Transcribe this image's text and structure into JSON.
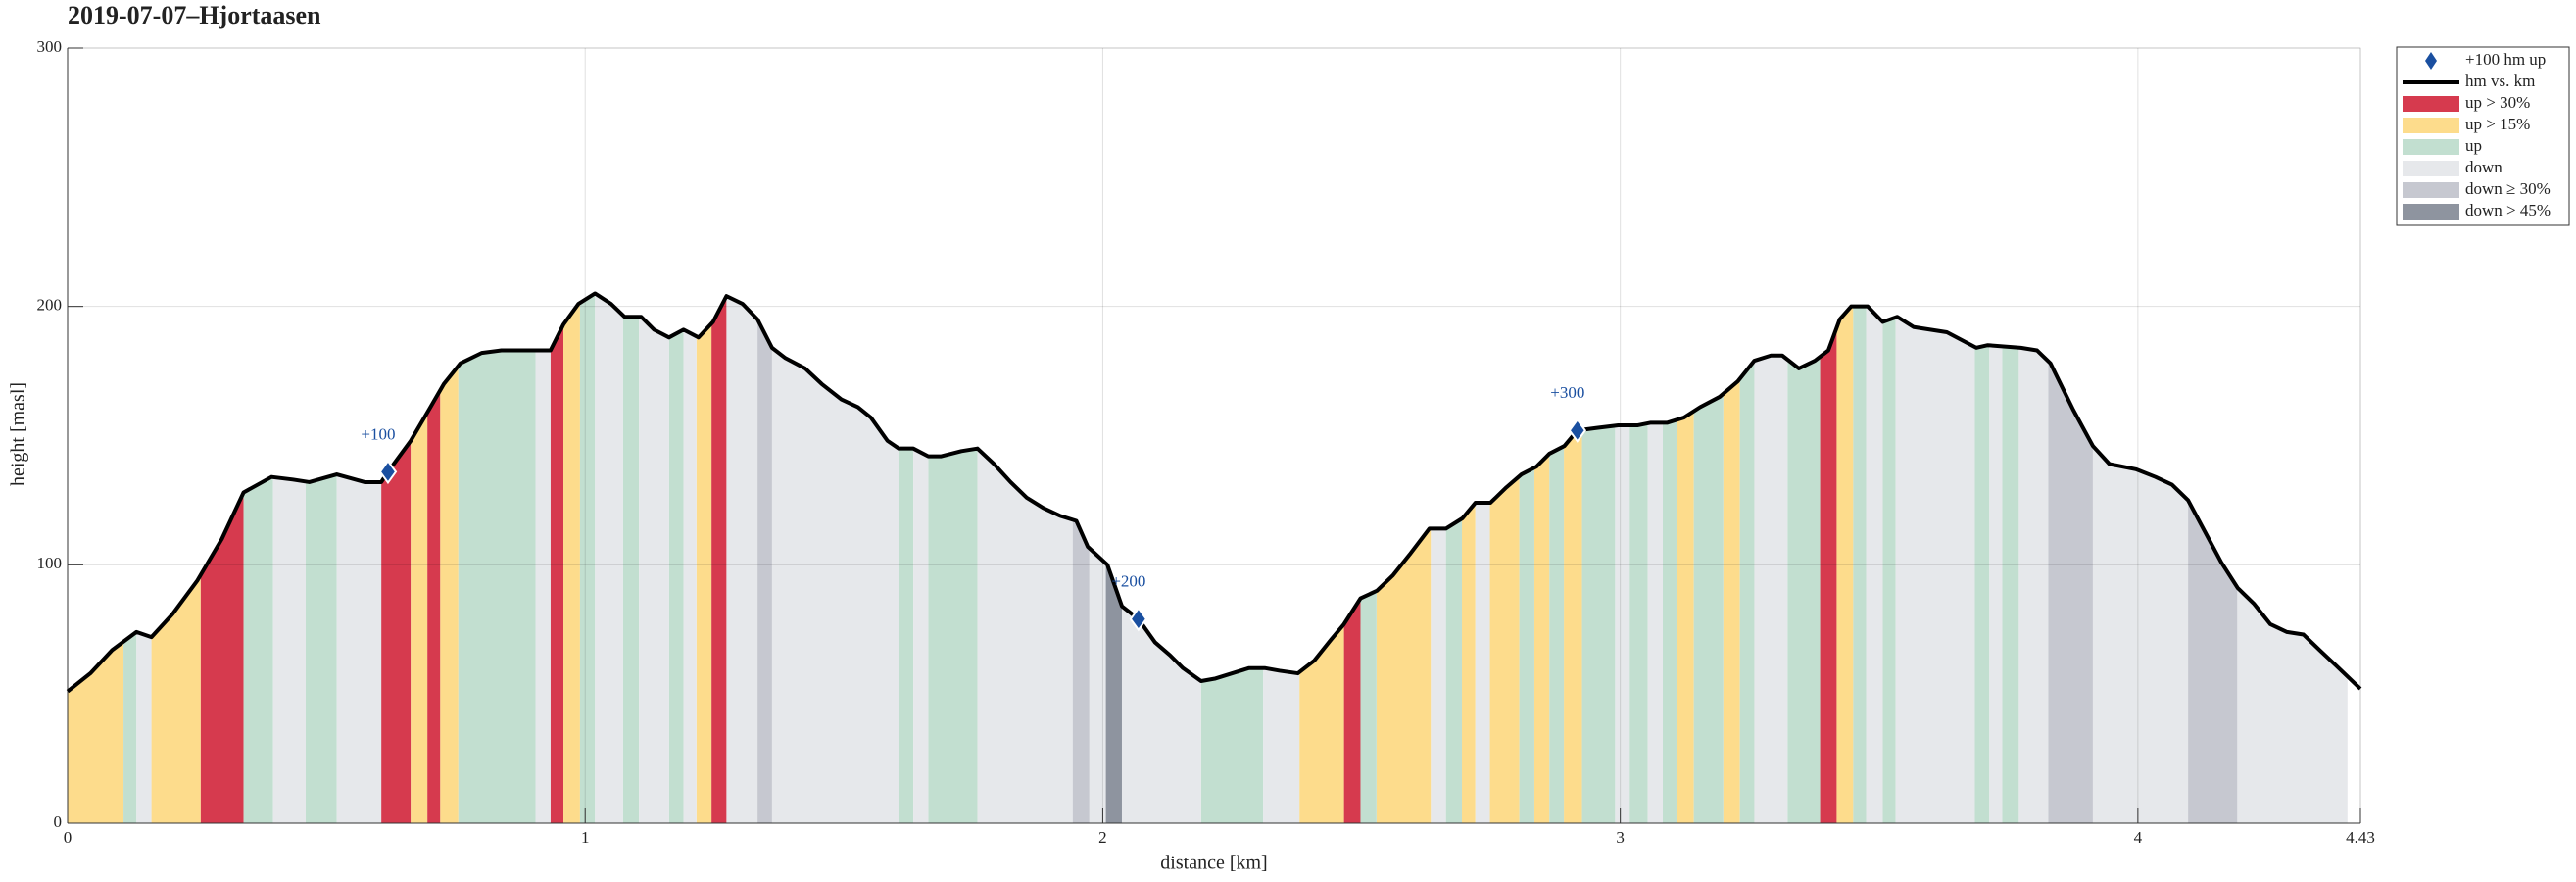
{
  "chart_data": {
    "type": "elevation-profile",
    "title": "2019-07-07–Hjortaasen",
    "xlabel": "distance [km]",
    "ylabel": "height [masl]",
    "xlim": [
      0,
      4.43
    ],
    "ylim": [
      0,
      300
    ],
    "xticks": [
      0,
      1,
      2,
      3,
      4,
      4.43
    ],
    "yticks": [
      0,
      100,
      200,
      300
    ],
    "grid": true,
    "legend": "outside-upper-right",
    "profile": {
      "name": "hm vs. km",
      "color": "#000000",
      "x": [
        0,
        0.044,
        0.086,
        0.133,
        0.162,
        0.203,
        0.251,
        0.298,
        0.34,
        0.394,
        0.435,
        0.467,
        0.52,
        0.574,
        0.606,
        0.619,
        0.663,
        0.701,
        0.727,
        0.759,
        0.8,
        0.838,
        0.901,
        0.933,
        0.958,
        0.987,
        1.019,
        1.05,
        1.076,
        1.108,
        1.133,
        1.162,
        1.19,
        1.219,
        1.247,
        1.273,
        1.304,
        1.333,
        1.361,
        1.387,
        1.425,
        1.457,
        1.495,
        1.527,
        1.552,
        1.584,
        1.606,
        1.634,
        1.663,
        1.688,
        1.727,
        1.758,
        1.79,
        1.822,
        1.853,
        1.885,
        1.917,
        1.949,
        1.971,
        2.009,
        2.037,
        2.069,
        2.101,
        2.13,
        2.155,
        2.19,
        2.218,
        2.25,
        2.282,
        2.314,
        2.342,
        2.377,
        2.409,
        2.441,
        2.466,
        2.498,
        2.53,
        2.561,
        2.593,
        2.631,
        2.663,
        2.695,
        2.72,
        2.749,
        2.78,
        2.809,
        2.838,
        2.863,
        2.892,
        2.917,
        2.955,
        2.996,
        3.034,
        3.059,
        3.091,
        3.123,
        3.154,
        3.192,
        3.227,
        3.259,
        3.291,
        3.313,
        3.345,
        3.376,
        3.402,
        3.424,
        3.446,
        3.478,
        3.507,
        3.535,
        3.567,
        3.631,
        3.688,
        3.71,
        3.774,
        3.805,
        3.831,
        3.875,
        3.913,
        3.945,
        3.996,
        4.034,
        4.066,
        4.097,
        4.129,
        4.161,
        4.193,
        4.224,
        4.256,
        4.288,
        4.32,
        4.351,
        4.383,
        4.43
      ],
      "values": [
        51,
        58,
        67,
        74,
        72,
        81,
        94,
        110,
        128,
        134,
        133,
        132,
        135,
        132,
        132,
        136,
        148,
        161,
        170,
        178,
        182,
        183,
        183,
        183,
        193,
        201,
        205,
        201,
        196,
        196,
        191,
        188,
        191,
        188,
        194,
        204,
        201,
        195,
        184,
        180,
        176,
        170,
        164,
        161,
        157,
        148,
        145,
        145,
        142,
        142,
        144,
        145,
        139,
        132,
        126,
        122,
        119,
        117,
        107,
        100,
        84,
        79,
        70,
        65,
        60,
        55,
        56,
        58,
        60,
        60,
        59,
        58,
        63,
        71,
        77,
        87,
        90,
        96,
        104,
        114,
        114,
        118,
        124,
        124,
        130,
        135,
        138,
        143,
        146,
        152,
        153,
        154,
        154,
        155,
        155,
        157,
        161,
        165,
        171,
        179,
        181,
        181,
        176,
        179,
        183,
        195,
        200,
        200,
        194,
        196,
        192,
        190,
        184,
        185,
        184,
        183,
        178,
        160,
        146,
        139,
        137,
        134,
        131,
        125,
        113,
        101,
        91,
        85,
        77,
        74,
        73,
        67,
        61,
        52
      ]
    },
    "markers": {
      "name": "+100 hm up",
      "color": "#1a4fa0",
      "x": [
        0.619,
        2.069,
        2.917
      ],
      "values": [
        136,
        79,
        152
      ],
      "labels": [
        "+100",
        "+200",
        "+300"
      ]
    },
    "bands": [
      {
        "name": "up > 30%",
        "color": "#d63a4e",
        "ranges": [
          [
            0.257,
            0.34
          ],
          [
            0.606,
            0.663
          ],
          [
            0.695,
            0.72
          ],
          [
            0.933,
            0.958
          ],
          [
            1.244,
            1.273
          ],
          [
            2.466,
            2.498
          ],
          [
            3.386,
            3.418
          ]
        ]
      },
      {
        "name": "up > 15%",
        "color": "#fddc8c",
        "ranges": [
          [
            0,
            0.108
          ],
          [
            0.162,
            0.257
          ],
          [
            0.663,
            0.695
          ],
          [
            0.72,
            0.755
          ],
          [
            0.958,
            0.99
          ],
          [
            1.215,
            1.244
          ],
          [
            2.38,
            2.466
          ],
          [
            2.529,
            2.634
          ],
          [
            2.694,
            2.72
          ],
          [
            2.748,
            2.805
          ],
          [
            2.834,
            2.863
          ],
          [
            2.891,
            2.926
          ],
          [
            3.11,
            3.142
          ],
          [
            3.199,
            3.231
          ],
          [
            3.418,
            3.45
          ]
        ]
      },
      {
        "name": "up",
        "color": "#c2dfd0",
        "ranges": [
          [
            0.108,
            0.133
          ],
          [
            0.34,
            0.397
          ],
          [
            0.46,
            0.52
          ],
          [
            0.755,
            0.904
          ],
          [
            0.99,
            1.019
          ],
          [
            1.073,
            1.104
          ],
          [
            1.162,
            1.19
          ],
          [
            1.606,
            1.634
          ],
          [
            1.663,
            1.758
          ],
          [
            2.19,
            2.31
          ],
          [
            2.498,
            2.529
          ],
          [
            2.663,
            2.694
          ],
          [
            2.805,
            2.834
          ],
          [
            2.863,
            2.891
          ],
          [
            2.926,
            2.99
          ],
          [
            3.018,
            3.053
          ],
          [
            3.082,
            3.11
          ],
          [
            3.142,
            3.199
          ],
          [
            3.231,
            3.259
          ],
          [
            3.323,
            3.386
          ],
          [
            3.45,
            3.475
          ],
          [
            3.507,
            3.532
          ],
          [
            3.685,
            3.713
          ],
          [
            3.738,
            3.77
          ]
        ]
      },
      {
        "name": "down",
        "color": "#e6e8eb",
        "ranges": [
          [
            0.133,
            0.162
          ],
          [
            0.397,
            0.46
          ],
          [
            0.52,
            0.606
          ],
          [
            0.904,
            0.933
          ],
          [
            1.019,
            1.073
          ],
          [
            1.104,
            1.162
          ],
          [
            1.19,
            1.215
          ],
          [
            1.273,
            1.333
          ],
          [
            1.361,
            1.606
          ],
          [
            1.634,
            1.663
          ],
          [
            1.758,
            1.942
          ],
          [
            1.974,
            2.006
          ],
          [
            2.037,
            2.19
          ],
          [
            2.31,
            2.38
          ],
          [
            2.634,
            2.663
          ],
          [
            2.72,
            2.748
          ],
          [
            2.99,
            3.018
          ],
          [
            3.053,
            3.082
          ],
          [
            3.259,
            3.323
          ],
          [
            3.475,
            3.507
          ],
          [
            3.532,
            3.685
          ],
          [
            3.713,
            3.738
          ],
          [
            3.77,
            3.827
          ],
          [
            3.913,
            4.097
          ],
          [
            4.192,
            4.405
          ]
        ]
      },
      {
        "name": "down ≥ 30%",
        "color": "#c6c8d0",
        "ranges": [
          [
            1.333,
            1.361
          ],
          [
            1.942,
            1.974
          ],
          [
            3.827,
            3.913
          ],
          [
            4.097,
            4.192
          ]
        ]
      },
      {
        "name": "down > 45%",
        "color": "#8e949f",
        "ranges": [
          [
            2.006,
            2.037
          ]
        ]
      }
    ]
  }
}
